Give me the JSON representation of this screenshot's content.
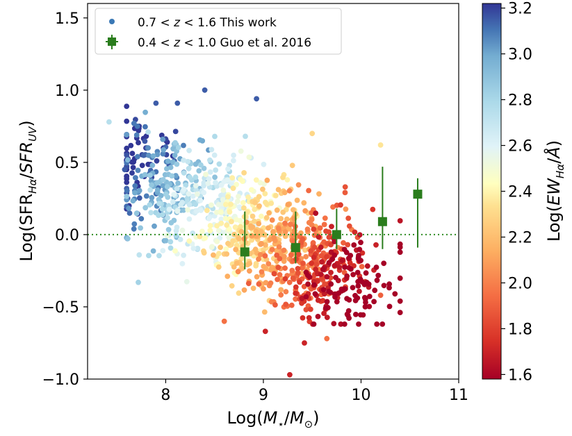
{
  "chart_data": {
    "type": "scatter",
    "title": "",
    "xlabel": "Log(M⋆/M⊙)",
    "ylabel": "Log(SFR_Hα/SFR_UV)",
    "xlim": [
      7.2,
      11.0
    ],
    "ylim": [
      -1.0,
      1.6
    ],
    "x_ticks": [
      "8",
      "9",
      "10",
      "11"
    ],
    "y_ticks": [
      "−1.0",
      "−0.5",
      "0.0",
      "0.5",
      "1.0",
      "1.5"
    ],
    "reference_line": {
      "y": 0.0,
      "style": "dotted",
      "color": "#2e8b22"
    },
    "colorbar": {
      "label": "Log(EW_Hα/Å)",
      "range": [
        1.58,
        3.22
      ],
      "ticks": [
        "1.6",
        "1.8",
        "2.0",
        "2.2",
        "2.4",
        "2.6",
        "2.8",
        "3.0",
        "3.2"
      ],
      "colormap": "RdYlBu"
    },
    "legend": {
      "placement": "top-left",
      "entries": [
        {
          "series": "this_work",
          "label": "0.7 < z < 1.6 This work",
          "marker": "circle",
          "color": "#3a78b5"
        },
        {
          "series": "guo2016",
          "label": "0.4 < z < 1.0 Guo et al. 2016",
          "marker": "square",
          "color": "#2a7d1d"
        }
      ]
    },
    "series": [
      {
        "name": "0.7 < z < 1.6 This work",
        "marker": "circle",
        "points_sample": [
          {
            "x": 7.42,
            "y": 0.78,
            "c": 2.75
          },
          {
            "x": 7.58,
            "y": 0.45,
            "c": 3.15
          },
          {
            "x": 7.71,
            "y": 0.75,
            "c": 3.1
          },
          {
            "x": 7.75,
            "y": 0.11,
            "c": 3.1
          },
          {
            "x": 7.82,
            "y": 0.71,
            "c": 2.75
          },
          {
            "x": 7.9,
            "y": 0.91,
            "c": 3.15
          },
          {
            "x": 8.12,
            "y": 0.91,
            "c": 3.15
          },
          {
            "x": 8.4,
            "y": 1.0,
            "c": 3.15
          },
          {
            "x": 8.93,
            "y": 0.94,
            "c": 3.15
          },
          {
            "x": 8.2,
            "y": 0.3,
            "c": 2.7
          },
          {
            "x": 8.5,
            "y": 0.55,
            "c": 2.65
          },
          {
            "x": 8.9,
            "y": 0.3,
            "c": 2.5
          },
          {
            "x": 9.5,
            "y": 0.7,
            "c": 2.3
          },
          {
            "x": 10.2,
            "y": 0.62,
            "c": 2.35
          },
          {
            "x": 9.0,
            "y": 0.0,
            "c": 2.2
          },
          {
            "x": 9.5,
            "y": -0.2,
            "c": 2.0
          },
          {
            "x": 9.8,
            "y": -0.1,
            "c": 1.9
          },
          {
            "x": 10.2,
            "y": -0.42,
            "c": 1.9
          },
          {
            "x": 8.6,
            "y": -0.6,
            "c": 1.95
          },
          {
            "x": 9.02,
            "y": -0.67,
            "c": 1.7
          },
          {
            "x": 9.42,
            "y": -0.75,
            "c": 1.7
          },
          {
            "x": 9.65,
            "y": -0.72,
            "c": 1.95
          },
          {
            "x": 9.27,
            "y": -0.97,
            "c": 1.7
          }
        ]
      },
      {
        "name": "0.4 < z < 1.0 Guo et al. 2016",
        "marker": "square",
        "x": [
          8.81,
          9.33,
          9.75,
          10.22,
          10.58
        ],
        "y": [
          -0.12,
          -0.09,
          0.0,
          0.09,
          0.28
        ],
        "yerr_low": [
          -0.24,
          -0.2,
          -0.1,
          -0.1,
          -0.09
        ],
        "yerr_high": [
          0.16,
          0.16,
          0.18,
          0.47,
          0.39
        ]
      }
    ]
  }
}
